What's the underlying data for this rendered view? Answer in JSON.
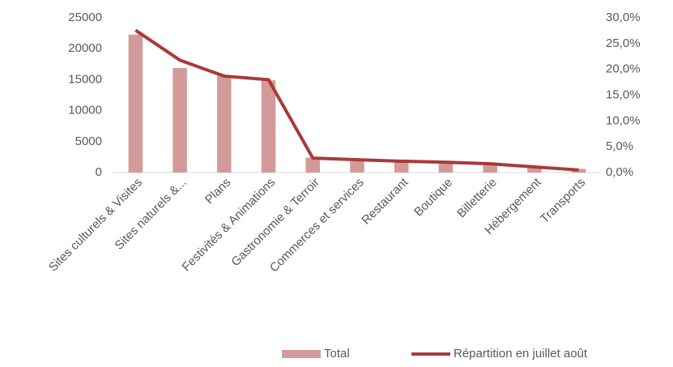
{
  "chart_data": {
    "type": "bar",
    "categories": [
      "Sites culturels & Visites",
      "Sites naturels &...",
      "Plans",
      "Festivités & Animations",
      "Gastronomie & Terroir",
      "Commerces et services",
      "Restaurant",
      "Boutique",
      "Billetterie",
      "Hébergement",
      "Transports"
    ],
    "series": [
      {
        "name": "Total",
        "type": "bar",
        "color": "#d49a9a",
        "values": [
          22300,
          16900,
          15600,
          14900,
          2400,
          2200,
          2000,
          1900,
          1600,
          1000,
          600
        ]
      },
      {
        "name": "Répartition en juillet août",
        "type": "line",
        "axis": "y2",
        "color": "#a93a3a",
        "values": [
          27.6,
          21.8,
          18.7,
          18.0,
          2.8,
          2.5,
          2.2,
          2.0,
          1.7,
          1.1,
          0.5
        ]
      }
    ],
    "ylim": [
      0,
      25000
    ],
    "yticks": [
      0,
      5000,
      10000,
      15000,
      20000,
      25000
    ],
    "y2lim": [
      0,
      30
    ],
    "y2ticks": [
      {
        "value": 0,
        "label": "0,0%"
      },
      {
        "value": 5,
        "label": "5,0%"
      },
      {
        "value": 10,
        "label": "10,0%"
      },
      {
        "value": 15,
        "label": "15,0%"
      },
      {
        "value": 20,
        "label": "20,0%"
      },
      {
        "value": 25,
        "label": "25,0%"
      },
      {
        "value": 30,
        "label": "30,0%"
      }
    ],
    "legend": "bottom"
  }
}
